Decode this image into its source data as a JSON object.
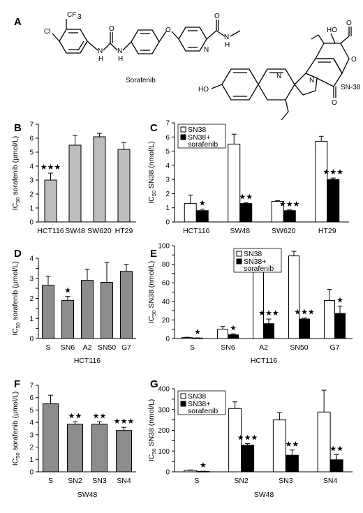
{
  "labels": {
    "A": "A",
    "B": "B",
    "C": "C",
    "D": "D",
    "E": "E",
    "F": "F",
    "G": "G"
  },
  "molecules": {
    "sorafenib_name": "Sorafenib",
    "sn38_name": "SN-38",
    "atoms": {
      "cf3": "CF",
      "cf3_sub": "3",
      "cl": "Cl",
      "o": "O",
      "n": "N",
      "h": "H",
      "oh": "HO",
      "ho": "HO",
      "o_ring": "O",
      "o_ketone": "O",
      "o_lactone": "O"
    }
  },
  "colors": {
    "gray_light": "#bdbdbd",
    "gray_dark": "#8c8c8c",
    "black": "#000000",
    "white": "#ffffff"
  },
  "chart_data": [
    {
      "id": "B",
      "type": "bar",
      "ylabel": "IC50 sorafenib (µmol/L)",
      "ylabel_main": "IC",
      "ylabel_sub": "50",
      "ylabel_rest": " sorafenib (µmol/L)",
      "categories": [
        "HCT116",
        "SW48",
        "SW620",
        "HT29"
      ],
      "ylim": [
        0,
        7
      ],
      "yticks": [
        0,
        1,
        2,
        3,
        4,
        5,
        6,
        7
      ],
      "series": [
        {
          "values": [
            3.0,
            5.5,
            6.1,
            5.2
          ],
          "errors": [
            0.5,
            0.7,
            0.25,
            0.5
          ],
          "color": "#bdbdbd"
        }
      ],
      "annotations": [
        {
          "category": "HCT116",
          "text": "★★★"
        }
      ],
      "legend": null,
      "grid": false
    },
    {
      "id": "C",
      "type": "bar",
      "ylabel": "IC50 SN38 (nmol/L)",
      "ylabel_main": "IC",
      "ylabel_sub": "50",
      "ylabel_rest": " SN38 (nmol/L)",
      "categories": [
        "HCT116",
        "SW48",
        "SW620",
        "HT29"
      ],
      "ylim": [
        0,
        7
      ],
      "yticks": [
        0,
        1,
        2,
        3,
        4,
        5,
        6,
        7
      ],
      "series": [
        {
          "name": "SN38",
          "values": [
            1.3,
            5.5,
            1.45,
            5.7
          ],
          "errors": [
            0.6,
            0.7,
            0.05,
            0.35
          ],
          "color": "#ffffff"
        },
        {
          "name": "SN38+ sorafenib",
          "values": [
            0.8,
            1.3,
            0.8,
            3.0
          ],
          "errors": [
            0.1,
            0.05,
            0.05,
            0.1
          ],
          "color": "#000000"
        }
      ],
      "annotations": [
        {
          "category": "HCT116",
          "text": "★"
        },
        {
          "category": "SW48",
          "text": "★★"
        },
        {
          "category": "SW620",
          "text": "★★★"
        },
        {
          "category": "HT29",
          "text": "★★★"
        }
      ],
      "legend": {
        "position": "top-left",
        "entries": [
          "SN38",
          "SN38+",
          "sorafenib"
        ]
      },
      "grid": false
    },
    {
      "id": "D",
      "type": "bar",
      "ylabel": "IC50 sorafenib (µmol/L)",
      "ylabel_main": "IC",
      "ylabel_sub": "50",
      "ylabel_rest": " sorafenib (µmol/L)",
      "categories": [
        "S",
        "SN6",
        "A2",
        "SN50",
        "G7"
      ],
      "group_label": "HCT116",
      "ylim": [
        0,
        4
      ],
      "yticks": [
        0,
        0.5,
        1,
        1.5,
        2,
        2.5,
        3,
        3.5,
        4
      ],
      "ytick_labels": [
        "0",
        "",
        "1",
        "",
        "2",
        "",
        "3",
        "",
        "4"
      ],
      "series": [
        {
          "values": [
            2.65,
            1.9,
            2.9,
            2.8,
            3.35
          ],
          "errors": [
            0.45,
            0.2,
            0.55,
            1.0,
            0.35
          ],
          "color": "#8c8c8c"
        }
      ],
      "annotations": [
        {
          "category": "SN6",
          "text": "★"
        }
      ],
      "legend": null,
      "grid": false
    },
    {
      "id": "E",
      "type": "bar",
      "ylabel": "IC50 SN38 (nmol/L)",
      "ylabel_main": "IC",
      "ylabel_sub": "50",
      "ylabel_rest": " SN38 (nmol/L)",
      "categories": [
        "S",
        "SN6",
        "A2",
        "SN50",
        "G7"
      ],
      "group_label": "HCT116",
      "ylim": [
        0,
        100
      ],
      "yticks": [
        0,
        10,
        20,
        30,
        40,
        50,
        60,
        70,
        80,
        90,
        100
      ],
      "ytick_labels": [
        "0",
        "",
        "20",
        "",
        "40",
        "",
        "60",
        "",
        "80",
        "",
        "100"
      ],
      "series": [
        {
          "name": "SN38",
          "values": [
            1,
            10,
            80,
            89,
            41
          ],
          "errors": [
            0.4,
            3,
            1.5,
            5,
            12
          ],
          "color": "#ffffff"
        },
        {
          "name": "SN38+ sorafenib",
          "values": [
            0.5,
            4,
            16,
            21,
            27
          ],
          "errors": [
            0.2,
            1,
            5,
            1,
            8
          ],
          "color": "#000000"
        }
      ],
      "annotations": [
        {
          "category": "S",
          "text": "★"
        },
        {
          "category": "SN6",
          "text": "★"
        },
        {
          "category": "A2",
          "text": "★★★"
        },
        {
          "category": "SN50",
          "text": "★★★"
        },
        {
          "category": "G7",
          "text": "★"
        }
      ],
      "legend": {
        "position": "top-center",
        "entries": [
          "SN38",
          "SN38+",
          "sorafenib"
        ]
      },
      "grid": false
    },
    {
      "id": "F",
      "type": "bar",
      "ylabel": "IC50 sorafenib (µmol/L)",
      "ylabel_main": "IC",
      "ylabel_sub": "50",
      "ylabel_rest": " sorafenib (µmol/L)",
      "categories": [
        "S",
        "SN2",
        "SN3",
        "SN4"
      ],
      "group_label": "SW48",
      "ylim": [
        0,
        7
      ],
      "yticks": [
        0,
        1,
        2,
        3,
        4,
        5,
        6,
        7
      ],
      "series": [
        {
          "values": [
            5.5,
            3.85,
            3.85,
            3.35
          ],
          "errors": [
            0.7,
            0.2,
            0.2,
            0.25
          ],
          "color": "#8c8c8c"
        }
      ],
      "annotations": [
        {
          "category": "SN2",
          "text": "★★"
        },
        {
          "category": "SN3",
          "text": "★★"
        },
        {
          "category": "SN4",
          "text": "★★★"
        }
      ],
      "legend": null,
      "grid": false
    },
    {
      "id": "G",
      "type": "bar",
      "ylabel": "IC50 SN38 (nmol/L)",
      "ylabel_main": "IC",
      "ylabel_sub": "50",
      "ylabel_rest": " SN38 (nmol/L)",
      "categories": [
        "S",
        "SN2",
        "SN3",
        "SN4"
      ],
      "group_label": "SW48",
      "ylim": [
        0,
        400
      ],
      "yticks": [
        0,
        50,
        100,
        150,
        200,
        250,
        300,
        350,
        400
      ],
      "ytick_labels": [
        "0",
        "",
        "100",
        "",
        "200",
        "",
        "300",
        "",
        "400"
      ],
      "series": [
        {
          "name": "SN38",
          "values": [
            7,
            305,
            250,
            288
          ],
          "errors": [
            2,
            32,
            35,
            105
          ],
          "color": "#ffffff"
        },
        {
          "name": "SN38+ sorafenib",
          "values": [
            2,
            128,
            80,
            58
          ],
          "errors": [
            1,
            8,
            25,
            25
          ],
          "color": "#000000"
        }
      ],
      "annotations": [
        {
          "category": "S",
          "text": "★"
        },
        {
          "category": "SN2",
          "text": "★★★"
        },
        {
          "category": "SN3",
          "text": "★★"
        },
        {
          "category": "SN4",
          "text": "★★"
        }
      ],
      "legend": {
        "position": "top-left",
        "entries": [
          "SN38",
          "SN38+",
          "sorafenib"
        ]
      },
      "grid": false
    }
  ]
}
